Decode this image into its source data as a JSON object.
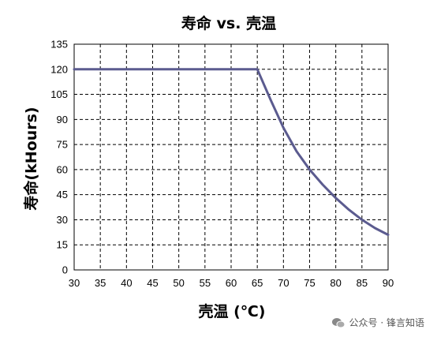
{
  "chart_data": {
    "type": "line",
    "title": "寿命 vs. 壳温",
    "xlabel": "壳温 (℃)",
    "ylabel": "寿命(kHours)",
    "xlim": [
      30,
      90
    ],
    "ylim": [
      0,
      135
    ],
    "xticks": [
      30,
      35,
      40,
      45,
      50,
      55,
      60,
      65,
      70,
      75,
      80,
      85,
      90
    ],
    "yticks": [
      0,
      15,
      30,
      45,
      60,
      75,
      90,
      105,
      120,
      135
    ],
    "grid": true,
    "line_color": "#5b5b8f",
    "series": [
      {
        "x": [
          30,
          65,
          67.5,
          70,
          72.5,
          75,
          77.5,
          80,
          82.5,
          85,
          87.5,
          90
        ],
        "y": [
          120,
          120,
          102,
          85,
          71,
          60,
          51,
          43,
          36,
          30,
          25,
          21
        ]
      }
    ]
  },
  "watermark": {
    "text": "公众号 · 锋言知语",
    "icon": "wechat-icon"
  }
}
